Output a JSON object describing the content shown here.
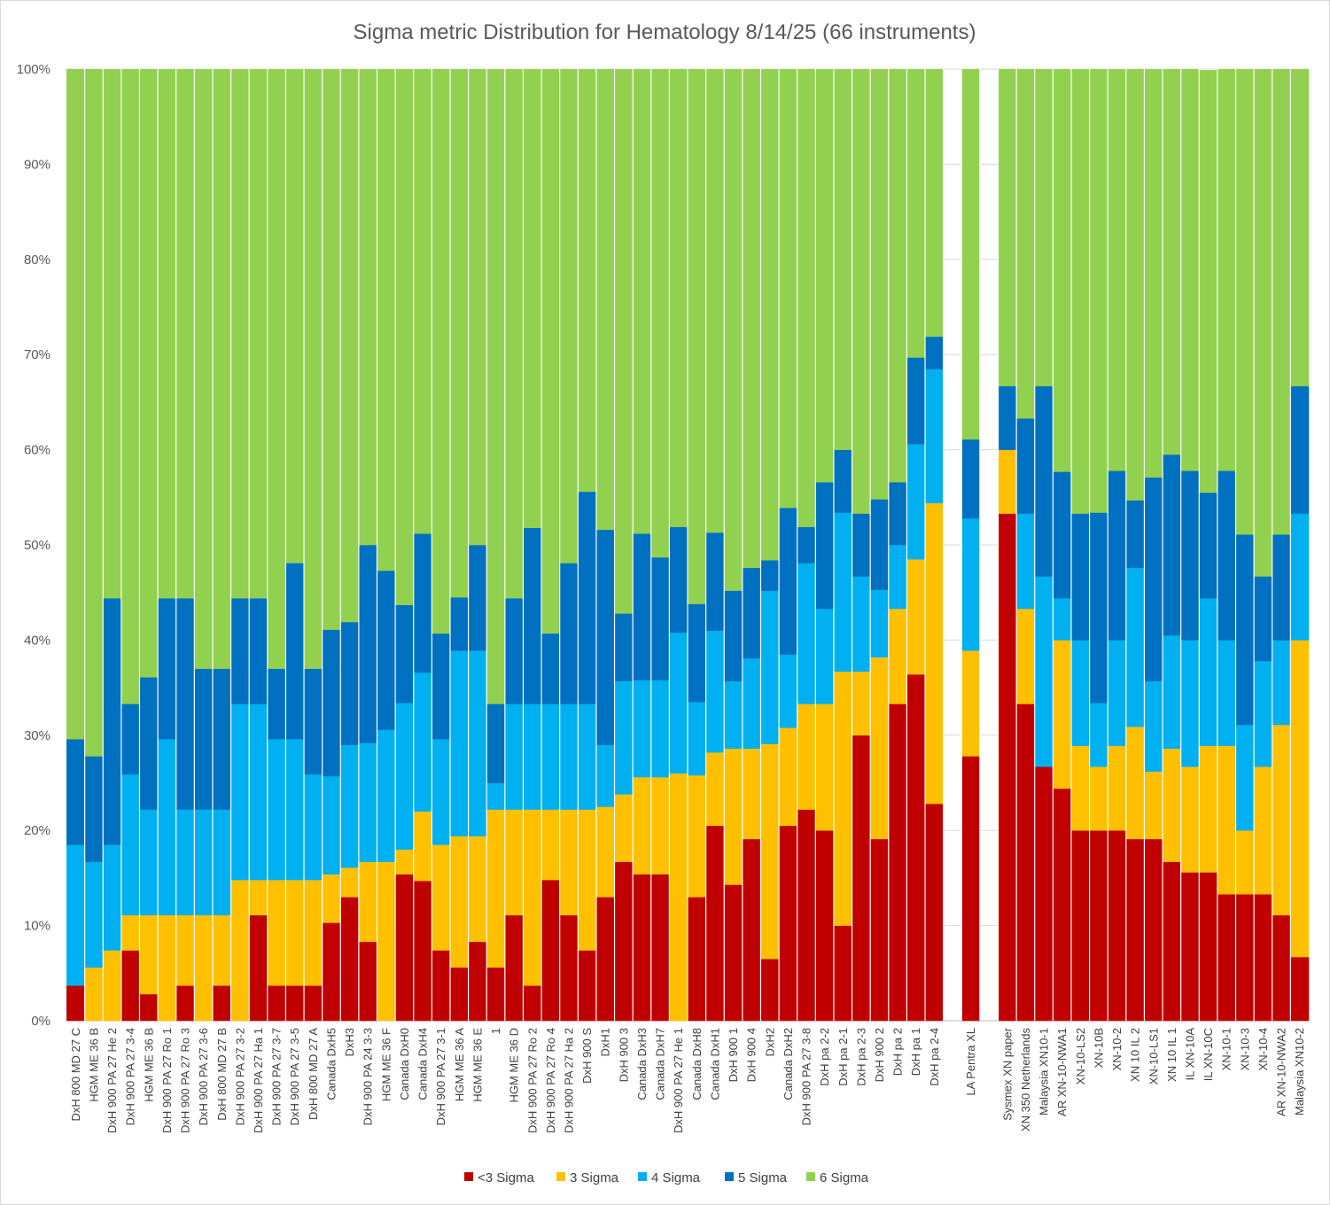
{
  "chart_data": {
    "type": "bar",
    "stacked": true,
    "title": "Sigma metric Distribution for Hematology 8/14/25 (66 instruments)",
    "xlabel": "",
    "ylabel": "",
    "ylim": [
      0,
      100
    ],
    "y_tick_labels": [
      "0%",
      "10%",
      "20%",
      "30%",
      "40%",
      "50%",
      "60%",
      "70%",
      "80%",
      "90%",
      "100%"
    ],
    "grid": "horizontal",
    "legend_position": "bottom",
    "colors": [
      "#c00000",
      "#ffc000",
      "#00b0f0",
      "#0070c0",
      "#92d050"
    ],
    "categories": [
      "DxH 800 MD 27 C",
      "HGM ME 36 B",
      "DxH 900 PA 27 He 2",
      "DxH 900 PA 27 3-4",
      "HGM ME 36 B",
      "DxH 900 PA 27 Ro 1",
      "DxH 900 PA 27 Ro 3",
      "DxH 900 PA 27 3-6",
      "DxH 800 MD 27 B",
      "DxH 900 PA 27 3-2",
      "DxH 900 PA 27 Ha 1",
      "DxH 900 PA 27 3-7",
      "DxH 900 PA 27 3-5",
      "DxH 800 MD 27 A",
      "Canada DxH5",
      "DxH3",
      "DxH 900 PA 24 3-3",
      "HGM ME 36 F",
      "Canada DxH0",
      "Canada DxH4",
      "DxH 900 PA 27 3-1",
      "HGM ME 36 A",
      "HGM ME 36 E",
      "1",
      "HGM ME 36 D",
      "DxH 900 PA 27 Ro 2",
      "DxH 900 PA 27 Ro 4",
      "DxH 900 PA 27 Ha 2",
      "DxH 900 S",
      "DxH1",
      "DxH 900 3",
      "Canada DxH3",
      "Canada DxH7",
      "DxH 900 PA 27 He 1",
      "Canada DxH8",
      "Canada DxH1",
      "DxH 900 1",
      "DxH 900 4",
      "DxH2",
      "Canada DxH2",
      "DxH 900 PA 27 3-8",
      "DxH pa 2-2",
      "DxH pa 2-1",
      "DxH pa 2-3",
      "DxH 900 2",
      "DxH pa 2",
      "DxH pa 1",
      "DxH pa 2-4",
      "",
      "LA Pentra XL",
      "",
      "Sysmex XN paper",
      "XN 350 Netherlands",
      "Malaysia XN10-1",
      "AR XN-10-NWA1",
      "XN-10-LS2",
      "XN-10B",
      "XN-10-2",
      "XN 10 IL 2",
      "XN-10-LS1",
      "XN 10 IL 1",
      "IL XN-10A",
      "IL XN-10C",
      "XN-10-1",
      "XN-10-3",
      "XN-10-4",
      "AR XN-10-NWA2",
      "Malaysia XN10-2"
    ],
    "series": [
      {
        "name": "<3 Sigma",
        "values": [
          3.7,
          0,
          0,
          7.4,
          2.8,
          0,
          3.7,
          0,
          3.7,
          0,
          11.1,
          3.7,
          3.7,
          3.7,
          10.3,
          13,
          8.3,
          0,
          15.4,
          14.7,
          7.4,
          5.6,
          8.3,
          5.6,
          11.1,
          3.7,
          14.8,
          11.1,
          7.4,
          13,
          16.7,
          15.4,
          15.4,
          0,
          13,
          20.5,
          14.3,
          19.1,
          6.5,
          20.5,
          22.2,
          20,
          10,
          30,
          19.1,
          33.3,
          36.4,
          22.8,
          0,
          27.8,
          0,
          53.3,
          33.3,
          26.7,
          24.4,
          20,
          20,
          20,
          19.1,
          19.1,
          16.7,
          15.6,
          15.6,
          13.3,
          13.3,
          13.3,
          11.1,
          6.7
        ]
      },
      {
        "name": "3 Sigma",
        "values": [
          0,
          5.6,
          7.4,
          3.7,
          8.3,
          11.1,
          7.4,
          11.1,
          7.4,
          14.8,
          3.7,
          11.1,
          11.1,
          11.1,
          5.1,
          3.1,
          8.4,
          16.7,
          2.6,
          7.3,
          11.1,
          13.8,
          11.1,
          16.6,
          11.1,
          18.5,
          7.4,
          11.1,
          14.8,
          9.5,
          7.1,
          10.2,
          10.2,
          26,
          12.8,
          7.7,
          14.3,
          9.5,
          22.6,
          10.3,
          11.1,
          13.3,
          26.7,
          6.7,
          19.1,
          10,
          12.1,
          31.6,
          0,
          11.1,
          0,
          6.7,
          10,
          0,
          15.6,
          8.9,
          6.7,
          8.9,
          11.8,
          7.1,
          11.9,
          11.1,
          13.3,
          15.6,
          6.7,
          13.4,
          20,
          33.3
        ]
      },
      {
        "name": "4 Sigma",
        "values": [
          14.8,
          11.1,
          11.1,
          14.8,
          11.1,
          18.5,
          11.1,
          11.1,
          11.1,
          18.5,
          18.5,
          14.8,
          14.8,
          11.1,
          10.3,
          12.9,
          12.5,
          13.9,
          15.4,
          14.6,
          11.1,
          19.5,
          19.5,
          2.8,
          11.1,
          11.1,
          11.1,
          11.1,
          11.1,
          6.5,
          11.9,
          10.2,
          10.2,
          14.8,
          7.7,
          12.8,
          7.1,
          9.5,
          16.1,
          7.7,
          14.8,
          10,
          16.7,
          10,
          7.1,
          6.7,
          12.1,
          14.1,
          0,
          13.9,
          0,
          0,
          10,
          20,
          4.4,
          11.1,
          6.7,
          11.1,
          16.7,
          9.5,
          11.9,
          13.3,
          15.5,
          11.1,
          11.1,
          11.1,
          8.9,
          13.3
        ]
      },
      {
        "name": "5 Sigma",
        "values": [
          11.1,
          11.1,
          25.9,
          7.4,
          13.9,
          14.8,
          22.2,
          14.8,
          14.8,
          11.1,
          11.1,
          7.4,
          18.5,
          11.1,
          15.4,
          12.9,
          20.8,
          16.7,
          10.3,
          14.6,
          11.1,
          5.6,
          11.1,
          8.3,
          11.1,
          18.5,
          7.4,
          14.8,
          22.3,
          22.6,
          7.1,
          15.4,
          12.9,
          11.1,
          10.3,
          10.3,
          9.5,
          9.5,
          3.2,
          15.4,
          3.8,
          13.3,
          6.6,
          6.6,
          9.5,
          6.6,
          9.1,
          3.4,
          0,
          8.3,
          0,
          6.7,
          10,
          20,
          13.3,
          13.3,
          20,
          17.8,
          7.1,
          21.4,
          19,
          17.8,
          11.1,
          17.8,
          20,
          8.9,
          11.1,
          13.4
        ]
      },
      {
        "name": "6 Sigma",
        "values": [
          70.4,
          72.2,
          55.6,
          66.7,
          63.9,
          55.6,
          55.6,
          63,
          63,
          55.6,
          55.6,
          63,
          51.9,
          63,
          58.9,
          58.1,
          50,
          52.7,
          56.3,
          48.8,
          59.3,
          55.5,
          50,
          66.7,
          55.6,
          48.2,
          59.3,
          51.9,
          44.4,
          48.4,
          57.2,
          48.8,
          51.3,
          48.1,
          56.2,
          48.7,
          54.8,
          52.4,
          51.6,
          46.1,
          48.1,
          43.4,
          40,
          46.7,
          45.2,
          43.4,
          30.3,
          28.1,
          0,
          38.9,
          0,
          33.3,
          36.7,
          33.3,
          42.3,
          46.7,
          46.6,
          42.2,
          45.3,
          42.9,
          40.5,
          42.2,
          44.4,
          42.2,
          48.9,
          53.3,
          48.9,
          33.3
        ]
      }
    ]
  }
}
